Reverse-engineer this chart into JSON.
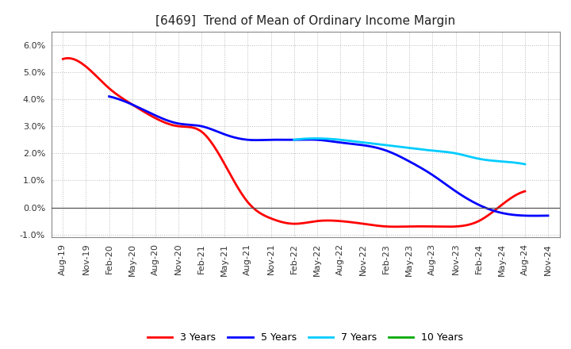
{
  "title": "[6469]  Trend of Mean of Ordinary Income Margin",
  "x_labels": [
    "Aug-19",
    "Nov-19",
    "Feb-20",
    "May-20",
    "Aug-20",
    "Nov-20",
    "Feb-21",
    "May-21",
    "Aug-21",
    "Nov-21",
    "Feb-22",
    "May-22",
    "Aug-22",
    "Nov-22",
    "Feb-23",
    "May-23",
    "Aug-23",
    "Nov-23",
    "Feb-24",
    "May-24",
    "Aug-24",
    "Nov-24"
  ],
  "ylim": [
    -0.011,
    0.065
  ],
  "yticks": [
    -0.01,
    0.0,
    0.01,
    0.02,
    0.03,
    0.04,
    0.05,
    0.06
  ],
  "ytick_labels": [
    "-1.0%",
    "0.0%",
    "1.0%",
    "2.0%",
    "3.0%",
    "4.0%",
    "5.0%",
    "6.0%"
  ],
  "series": {
    "3 Years": {
      "color": "#ff0000",
      "data": [
        0.0548,
        0.052,
        0.044,
        0.038,
        0.033,
        0.03,
        0.028,
        0.016,
        0.002,
        -0.004,
        -0.006,
        -0.005,
        -0.005,
        -0.006,
        -0.007,
        -0.007,
        -0.007,
        -0.007,
        -0.005,
        0.001,
        0.006,
        null
      ]
    },
    "5 Years": {
      "color": "#0000ff",
      "data": [
        null,
        null,
        0.041,
        0.038,
        0.034,
        0.031,
        0.03,
        0.027,
        0.025,
        0.025,
        0.025,
        0.025,
        0.024,
        0.023,
        0.021,
        0.017,
        0.012,
        0.006,
        0.001,
        -0.002,
        -0.003,
        -0.003
      ]
    },
    "7 Years": {
      "color": "#00ccff",
      "data": [
        null,
        null,
        null,
        null,
        null,
        null,
        null,
        null,
        null,
        null,
        0.025,
        0.0255,
        0.025,
        0.024,
        0.023,
        0.022,
        0.021,
        0.02,
        0.018,
        0.017,
        0.016,
        null
      ]
    },
    "10 Years": {
      "color": "#00aa00",
      "data": [
        null,
        null,
        null,
        null,
        null,
        null,
        null,
        null,
        null,
        null,
        null,
        null,
        null,
        null,
        null,
        null,
        null,
        null,
        null,
        null,
        null,
        null
      ]
    }
  },
  "legend_entries": [
    "3 Years",
    "5 Years",
    "7 Years",
    "10 Years"
  ],
  "background_color": "#ffffff",
  "grid_color": "#aaaaaa",
  "title_fontsize": 11,
  "tick_fontsize": 8,
  "legend_fontsize": 9
}
